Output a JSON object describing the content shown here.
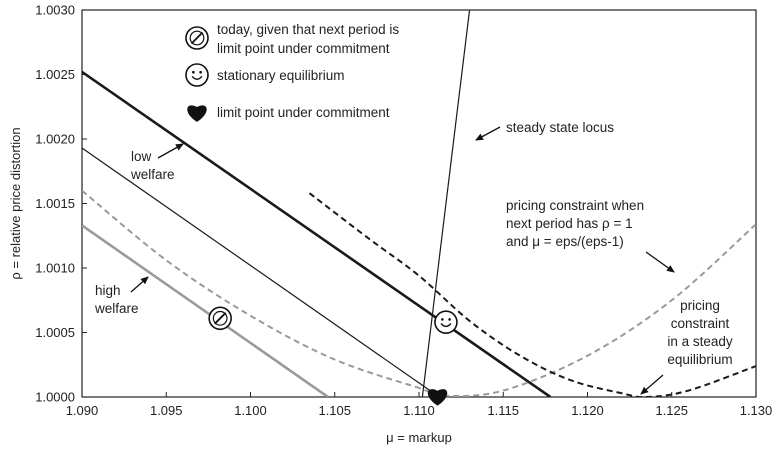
{
  "chart_data": {
    "type": "line",
    "xlabel": "μ = markup",
    "ylabel": "ρ = relative price distortion",
    "xlim": [
      1.09,
      1.13
    ],
    "ylim": [
      1.0,
      1.003
    ],
    "x_ticks": [
      "1.090",
      "1.095",
      "1.100",
      "1.105",
      "1.110",
      "1.115",
      "1.120",
      "1.125",
      "1.130"
    ],
    "y_ticks": [
      "1.0000",
      "1.0005",
      "1.0010",
      "1.0015",
      "1.0020",
      "1.0025",
      "1.0030"
    ],
    "grid": false,
    "series": [
      {
        "id": "steady-state-locus",
        "style": "thin-black",
        "points": [
          [
            1.1102,
            1.0
          ],
          [
            1.113,
            1.003
          ]
        ]
      },
      {
        "id": "low-welfare-isocurve",
        "style": "thick-black",
        "points": [
          [
            1.09,
            1.00252
          ],
          [
            1.1178,
            1.0
          ]
        ]
      },
      {
        "id": "middle-isocurve",
        "style": "thin-black",
        "points": [
          [
            1.09,
            1.00193
          ],
          [
            1.1112,
            1.0
          ]
        ]
      },
      {
        "id": "high-welfare-isocurve",
        "style": "thick-gray",
        "points": [
          [
            1.09,
            1.00133
          ],
          [
            1.1046,
            1.0
          ]
        ]
      },
      {
        "id": "pricing-constraint-next-period",
        "style": "dashed-gray",
        "points": [
          [
            1.09,
            1.0016
          ],
          [
            1.095,
            1.00106
          ],
          [
            1.1,
            1.00063
          ],
          [
            1.105,
            1.00029
          ],
          [
            1.11,
            1.00007
          ],
          [
            1.1115,
            1.00001
          ],
          [
            1.115,
            1.00005
          ],
          [
            1.12,
            1.00032
          ],
          [
            1.125,
            1.00075
          ],
          [
            1.13,
            1.00134
          ]
        ]
      },
      {
        "id": "pricing-constraint-steady",
        "style": "dashed-black",
        "points": [
          [
            1.1035,
            1.00158
          ],
          [
            1.107,
            1.00123
          ],
          [
            1.11,
            1.00094
          ],
          [
            1.113,
            1.00059
          ],
          [
            1.116,
            1.00032
          ],
          [
            1.119,
            1.00013
          ],
          [
            1.122,
            1.00003
          ],
          [
            1.1235,
            1.0
          ],
          [
            1.126,
            1.00005
          ],
          [
            1.13,
            1.00024
          ]
        ]
      }
    ],
    "markers": [
      {
        "id": "today-marker",
        "icon": "circled-slash",
        "x": 1.0982,
        "y": 1.00061
      },
      {
        "id": "stationary-equilibrium-marker",
        "icon": "smiley",
        "x": 1.1116,
        "y": 1.00058
      },
      {
        "id": "commitment-limit-marker",
        "icon": "heart",
        "x": 1.1111,
        "y": 1.00001
      }
    ],
    "legend": [
      {
        "icon": "circled-slash",
        "lines": [
          "today, given that next period is",
          "limit point under commitment"
        ]
      },
      {
        "icon": "smiley",
        "lines": [
          "stationary equilibrium"
        ]
      },
      {
        "icon": "heart",
        "lines": [
          "limit point under commitment"
        ]
      }
    ],
    "annotations": [
      {
        "id": "steady-state-locus-label",
        "lines": [
          "steady state locus"
        ]
      },
      {
        "id": "low-welfare-label",
        "lines": [
          "low",
          "welfare"
        ]
      },
      {
        "id": "high-welfare-label",
        "lines": [
          "high",
          "welfare"
        ]
      },
      {
        "id": "pricing-next-label",
        "lines": [
          "pricing constraint when",
          "next period has ρ = 1",
          "and μ = eps/(eps-1)"
        ]
      },
      {
        "id": "pricing-steady-label",
        "lines": [
          "pricing",
          "constraint",
          "in a steady",
          "equilibrium"
        ]
      }
    ]
  }
}
